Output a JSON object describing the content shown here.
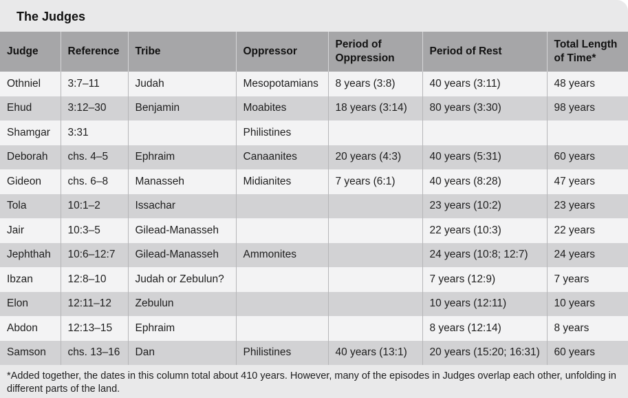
{
  "title": "The Judges",
  "headers": [
    "Judge",
    "Reference",
    "Tribe",
    "Oppressor",
    "Period of Oppression",
    "Period of Rest",
    "Total Length of Time*"
  ],
  "rows": [
    [
      "Othniel",
      "3:7–11",
      "Judah",
      "Mesopotamians",
      "8 years (3:8)",
      "40 years (3:11)",
      "48 years"
    ],
    [
      "Ehud",
      "3:12–30",
      "Benjamin",
      "Moabites",
      "18 years (3:14)",
      "80 years (3:30)",
      "98 years"
    ],
    [
      "Shamgar",
      "3:31",
      "",
      "Philistines",
      "",
      "",
      ""
    ],
    [
      "Deborah",
      "chs. 4–5",
      "Ephraim",
      "Canaanites",
      "20 years (4:3)",
      "40 years (5:31)",
      "60 years"
    ],
    [
      "Gideon",
      "chs. 6–8",
      "Manasseh",
      "Midianites",
      "7 years (6:1)",
      "40 years (8:28)",
      "47 years"
    ],
    [
      "Tola",
      "10:1–2",
      "Issachar",
      "",
      "",
      "23 years (10:2)",
      "23 years"
    ],
    [
      "Jair",
      "10:3–5",
      "Gilead-Manasseh",
      "",
      "",
      "22 years (10:3)",
      "22 years"
    ],
    [
      "Jephthah",
      "10:6–12:7",
      "Gilead-Manasseh",
      "Ammonites",
      "",
      "24 years (10:8; 12:7)",
      "24 years"
    ],
    [
      "Ibzan",
      "12:8–10",
      "Judah or Zebulun?",
      "",
      "",
      "7 years (12:9)",
      "7 years"
    ],
    [
      "Elon",
      "12:11–12",
      "Zebulun",
      "",
      "",
      "10 years (12:11)",
      "10 years"
    ],
    [
      "Abdon",
      "12:13–15",
      "Ephraim",
      "",
      "",
      "8 years (12:14)",
      "8 years"
    ],
    [
      "Samson",
      "chs. 13–16",
      "Dan",
      "Philistines",
      "40 years (13:1)",
      "20 years (15:20; 16:31)",
      "60 years"
    ]
  ],
  "footnote": "*Added together, the dates in this column total about 410 years. However, many of the episodes in Judges overlap each other, unfolding in different parts of the land.",
  "colors": {
    "header_bg": "#a6a6a8",
    "row_light": "#f3f3f4",
    "row_dark": "#d2d2d4",
    "card_bg": "#e9e9ea"
  }
}
